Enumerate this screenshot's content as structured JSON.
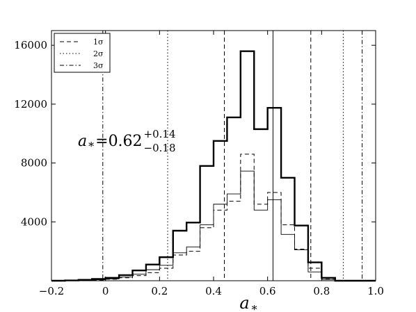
{
  "chart_data": {
    "type": "histogram",
    "xlabel": "a",
    "xlabel_sub": "*",
    "ylabel": "",
    "xlim": [
      -0.2,
      1.0
    ],
    "ylim": [
      0,
      17000
    ],
    "xticks": [
      -0.2,
      0,
      0.2,
      0.4,
      0.6,
      0.8,
      1.0
    ],
    "xtick_labels": [
      "−0.2",
      "0",
      "0.2",
      "0.4",
      "0.6",
      "0.8",
      "1.0"
    ],
    "yticks": [
      4000,
      8000,
      12000,
      16000
    ],
    "ytick_labels": [
      "4000",
      "8000",
      "12000",
      "16000"
    ],
    "grid": false,
    "legend_position": "top-left",
    "legend": [
      {
        "label": "1σ",
        "style": "dashed"
      },
      {
        "label": "2σ",
        "style": "dotted"
      },
      {
        "label": "3σ",
        "style": "dashdot"
      }
    ],
    "bin_edges": [
      -0.2,
      -0.15,
      -0.1,
      -0.05,
      0.0,
      0.05,
      0.1,
      0.15,
      0.2,
      0.25,
      0.3,
      0.35,
      0.4,
      0.45,
      0.5,
      0.55,
      0.6,
      0.65,
      0.7,
      0.75,
      0.8,
      0.85,
      0.9,
      0.95,
      1.0
    ],
    "series": [
      {
        "style": "thick-solid",
        "values": [
          0,
          20,
          60,
          120,
          200,
          380,
          700,
          1100,
          1600,
          3400,
          3950,
          7800,
          9500,
          11100,
          15600,
          10300,
          11750,
          7000,
          3750,
          1250,
          200,
          0,
          0,
          0
        ]
      },
      {
        "style": "thin-solid",
        "values": [
          0,
          10,
          30,
          70,
          130,
          250,
          450,
          750,
          1050,
          1900,
          2300,
          3800,
          5200,
          5900,
          7450,
          4800,
          5500,
          3150,
          2100,
          600,
          80,
          0,
          0,
          0
        ]
      },
      {
        "style": "dashed",
        "values": [
          0,
          5,
          20,
          50,
          100,
          200,
          350,
          550,
          850,
          1750,
          2000,
          3600,
          4800,
          5400,
          8600,
          5200,
          6000,
          3800,
          2150,
          850,
          100,
          0,
          0,
          0
        ]
      }
    ],
    "vlines": [
      {
        "x": 0.62,
        "style": "solid"
      },
      {
        "x": 0.44,
        "style": "dashed"
      },
      {
        "x": 0.76,
        "style": "dashed"
      },
      {
        "x": 0.23,
        "style": "dotted"
      },
      {
        "x": 0.88,
        "style": "dotted"
      },
      {
        "x": -0.01,
        "style": "dashdot"
      },
      {
        "x": 0.95,
        "style": "dashdot"
      }
    ],
    "annotation": {
      "symbol": "a",
      "subscript": "*",
      "equals": "=",
      "value": "0.62",
      "upper": "+0.14",
      "lower": "−0.18"
    }
  }
}
